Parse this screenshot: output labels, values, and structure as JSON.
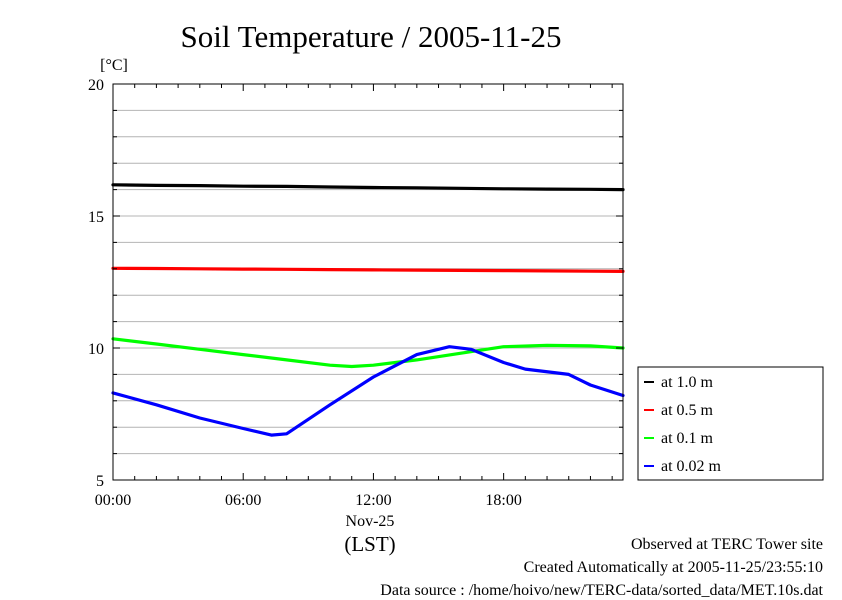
{
  "chart_data": {
    "type": "line",
    "title": "Soil Temperature / 2005-11-25",
    "ylabel": "[°C]",
    "xlabel": "(LST)",
    "date_label": "Nov-25",
    "ylim": [
      5,
      20
    ],
    "yticks": [
      "5",
      "10",
      "15",
      "20"
    ],
    "xlim": [
      0,
      23.5
    ],
    "xtick_values": [
      0,
      6,
      12,
      18
    ],
    "xticks": [
      "00:00",
      "06:00",
      "12:00",
      "18:00"
    ],
    "grid": true,
    "legend_position": "right",
    "series": [
      {
        "name": "at 1.0 m",
        "color": "#000000",
        "x": [
          0,
          2,
          4,
          6,
          8,
          10,
          12,
          14,
          16,
          18,
          20,
          22,
          23.5
        ],
        "y": [
          16.18,
          16.16,
          16.15,
          16.13,
          16.12,
          16.1,
          16.08,
          16.07,
          16.05,
          16.03,
          16.02,
          16.01,
          16.0
        ]
      },
      {
        "name": "at 0.5 m",
        "color": "#ff0000",
        "x": [
          0,
          2,
          4,
          6,
          8,
          10,
          12,
          14,
          16,
          18,
          20,
          22,
          23.5
        ],
        "y": [
          13.02,
          13.01,
          13.0,
          12.99,
          12.98,
          12.97,
          12.96,
          12.95,
          12.94,
          12.93,
          12.92,
          12.91,
          12.9
        ]
      },
      {
        "name": "at 0.1 m",
        "color": "#00ff00",
        "x": [
          0,
          2,
          4,
          6,
          8,
          10,
          11,
          12,
          14,
          16,
          18,
          20,
          22,
          23.5
        ],
        "y": [
          10.35,
          10.15,
          9.95,
          9.75,
          9.55,
          9.35,
          9.3,
          9.35,
          9.55,
          9.8,
          10.05,
          10.1,
          10.08,
          10.0
        ]
      },
      {
        "name": "at 0.02 m",
        "color": "#0000ff",
        "x": [
          0,
          2,
          4,
          6,
          7.3,
          8,
          9,
          10,
          12,
          14,
          15.5,
          16.5,
          18,
          19,
          21,
          22,
          23.5
        ],
        "y": [
          8.3,
          7.85,
          7.35,
          6.95,
          6.7,
          6.75,
          7.3,
          7.85,
          8.9,
          9.75,
          10.05,
          9.95,
          9.45,
          9.2,
          9.0,
          8.6,
          8.2
        ]
      }
    ]
  },
  "footer": {
    "site": "Observed at TERC Tower site",
    "created": "Created Automatically at 2005-11-25/23:55:10",
    "source": "Data source : /home/hoivo/new/TERC-data/sorted_data/MET.10s.dat"
  }
}
